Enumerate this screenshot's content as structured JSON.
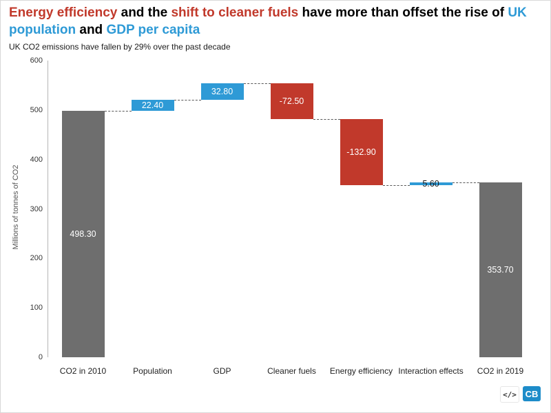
{
  "title": {
    "segments": [
      {
        "text": "Energy efficiency",
        "color": "#c1392b"
      },
      {
        "text": " and the ",
        "color": "#000000"
      },
      {
        "text": "shift to cleaner fuels",
        "color": "#c1392b"
      },
      {
        "text": " have more than offset the rise of ",
        "color": "#000000"
      },
      {
        "text": "UK population",
        "color": "#2e9ad6"
      },
      {
        "text": " and ",
        "color": "#000000"
      },
      {
        "text": "GDP per capita",
        "color": "#2e9ad6"
      }
    ]
  },
  "subtitle": "UK CO2 emissions have fallen by 29% over the past decade",
  "chart_data": {
    "type": "waterfall",
    "title": "Energy efficiency and the shift to cleaner fuels have more than offset the rise of UK population and GDP per capita",
    "subtitle": "UK CO2 emissions have fallen by 29% over the past decade",
    "categories": [
      "CO2 in 2010",
      "Population",
      "GDP",
      "Cleaner fuels",
      "Energy efficiency",
      "Interaction effects",
      "CO2 in 2019"
    ],
    "values": [
      498.3,
      22.4,
      32.8,
      -72.5,
      -132.9,
      5.6,
      353.7
    ],
    "bar_types": [
      "total",
      "increase",
      "increase",
      "decrease",
      "decrease",
      "increase",
      "total"
    ],
    "bar_labels": [
      "498.30",
      "22.40",
      "32.80",
      "-72.50",
      "-132.90",
      "5.60",
      "353.70"
    ],
    "ylabel": "Millions of tonnes of CO2",
    "xlabel": "",
    "ylim": [
      0,
      600
    ],
    "yticks": [
      0,
      100,
      200,
      300,
      400,
      500,
      600
    ],
    "grid": false,
    "legend": false,
    "colors": {
      "total": "#6e6e6e",
      "increase": "#2e9ad6",
      "decrease": "#c1392b"
    }
  },
  "footer": {
    "logo_code": "</>",
    "logo_cb": "CB"
  }
}
